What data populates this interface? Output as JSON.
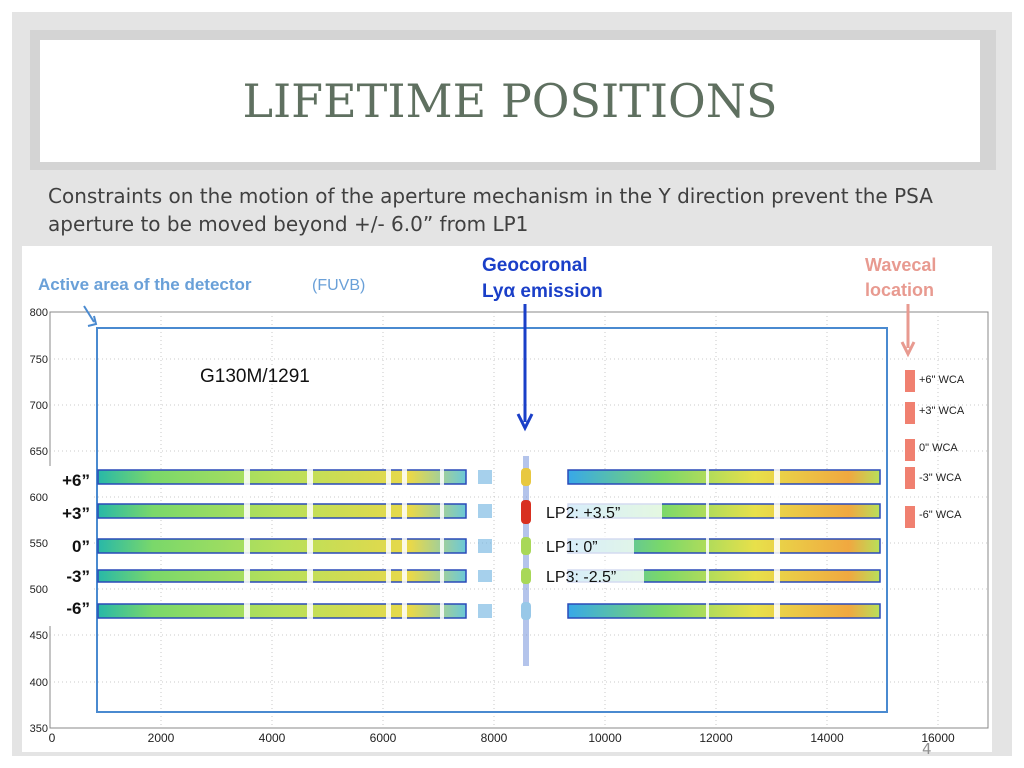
{
  "slide": {
    "title": "LIFETIME POSITIONS",
    "subtitle": "Constraints on the motion of the aperture mechanism in the Y direction prevent the PSA aperture to be moved beyond +/- 6.0” from LP1",
    "slide_number": "4"
  },
  "figure": {
    "labels": {
      "active_area": "Active area of the detector",
      "detector_name": "(FUVB)",
      "geocoronal_line1": "Geocoronal",
      "geocoronal_line2": "Lyα emission",
      "wavecal_line1": "Wavecal",
      "wavecal_line2": "location",
      "grating": "G130M/1291"
    },
    "y_axis_ticks": [
      "800",
      "750",
      "700",
      "650",
      "600",
      "550",
      "500",
      "450",
      "400",
      "350"
    ],
    "x_axis_ticks": [
      "0",
      "2000",
      "4000",
      "6000",
      "8000",
      "10000",
      "12000",
      "14000",
      "16000"
    ],
    "offset_labels": [
      "+6”",
      "+3”",
      "0”",
      "-3”",
      "-6”"
    ],
    "lifetime_positions": [
      "LP2: +3.5”",
      "LP1: 0”",
      "LP3: -2.5”"
    ],
    "wca_labels": [
      "+6\" WCA",
      "+3\" WCA",
      "0\" WCA",
      "-3\" WCA",
      "-6\" WCA"
    ],
    "colors": {
      "title": "#5f7060",
      "label_blue": "#2a5ab0",
      "geocoronal_blue": "#1a3fc8",
      "wavecal_salmon": "#e89a90",
      "wca_box": "#f08070",
      "active_area_box": "#4a8ad0"
    }
  }
}
